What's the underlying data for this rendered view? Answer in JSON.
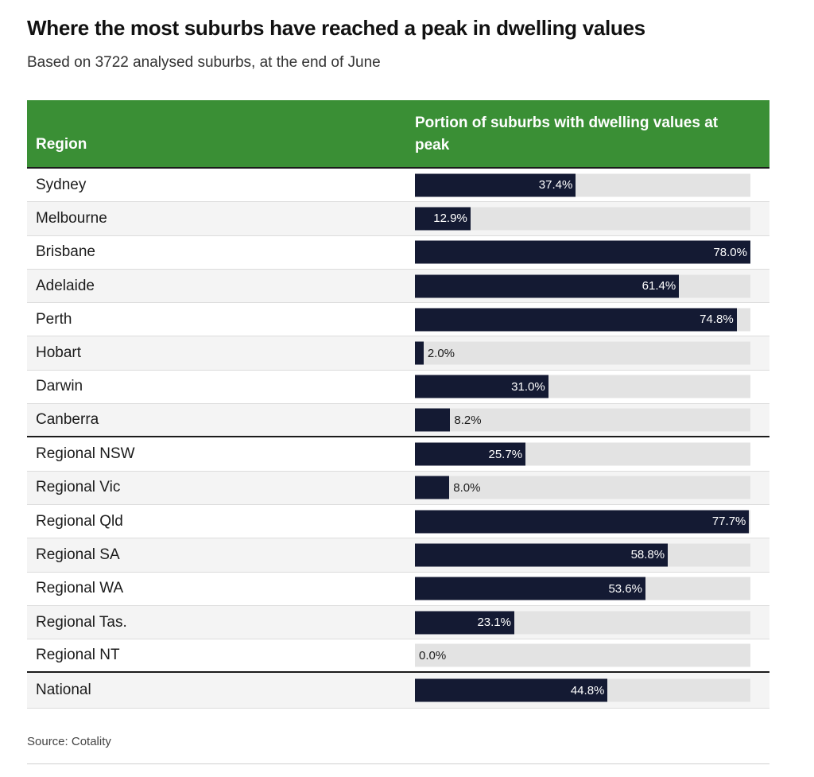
{
  "title": "Where the most suburbs have reached a peak in dwelling values",
  "subtitle": "Based on 3722 analysed suburbs, at the end of June",
  "source": "Source: Cotality",
  "colors": {
    "header": "#3a8f35",
    "bar": "#141a33",
    "track": "#e3e3e3"
  },
  "chart_data": {
    "type": "table",
    "columns": [
      "Region",
      "Portion of suburbs with dwelling values at peak"
    ],
    "xlim": [
      0,
      78
    ],
    "groups": [
      {
        "rows": [
          {
            "region": "Sydney",
            "value": 37.4,
            "label": "37.4%"
          },
          {
            "region": "Melbourne",
            "value": 12.9,
            "label": "12.9%"
          },
          {
            "region": "Brisbane",
            "value": 78.0,
            "label": "78.0%"
          },
          {
            "region": "Adelaide",
            "value": 61.4,
            "label": "61.4%"
          },
          {
            "region": "Perth",
            "value": 74.8,
            "label": "74.8%"
          },
          {
            "region": "Hobart",
            "value": 2.0,
            "label": "2.0%"
          },
          {
            "region": "Darwin",
            "value": 31.0,
            "label": "31.0%"
          },
          {
            "region": "Canberra",
            "value": 8.2,
            "label": "8.2%"
          }
        ]
      },
      {
        "rows": [
          {
            "region": "Regional NSW",
            "value": 25.7,
            "label": "25.7%"
          },
          {
            "region": "Regional Vic",
            "value": 8.0,
            "label": "8.0%"
          },
          {
            "region": "Regional Qld",
            "value": 77.7,
            "label": "77.7%"
          },
          {
            "region": "Regional SA",
            "value": 58.8,
            "label": "58.8%"
          },
          {
            "region": "Regional WA",
            "value": 53.6,
            "label": "53.6%"
          },
          {
            "region": "Regional Tas.",
            "value": 23.1,
            "label": "23.1%"
          },
          {
            "region": "Regional NT",
            "value": 0.0,
            "label": "0.0%"
          }
        ]
      },
      {
        "rows": [
          {
            "region": "National",
            "value": 44.8,
            "label": "44.8%"
          }
        ]
      }
    ]
  }
}
